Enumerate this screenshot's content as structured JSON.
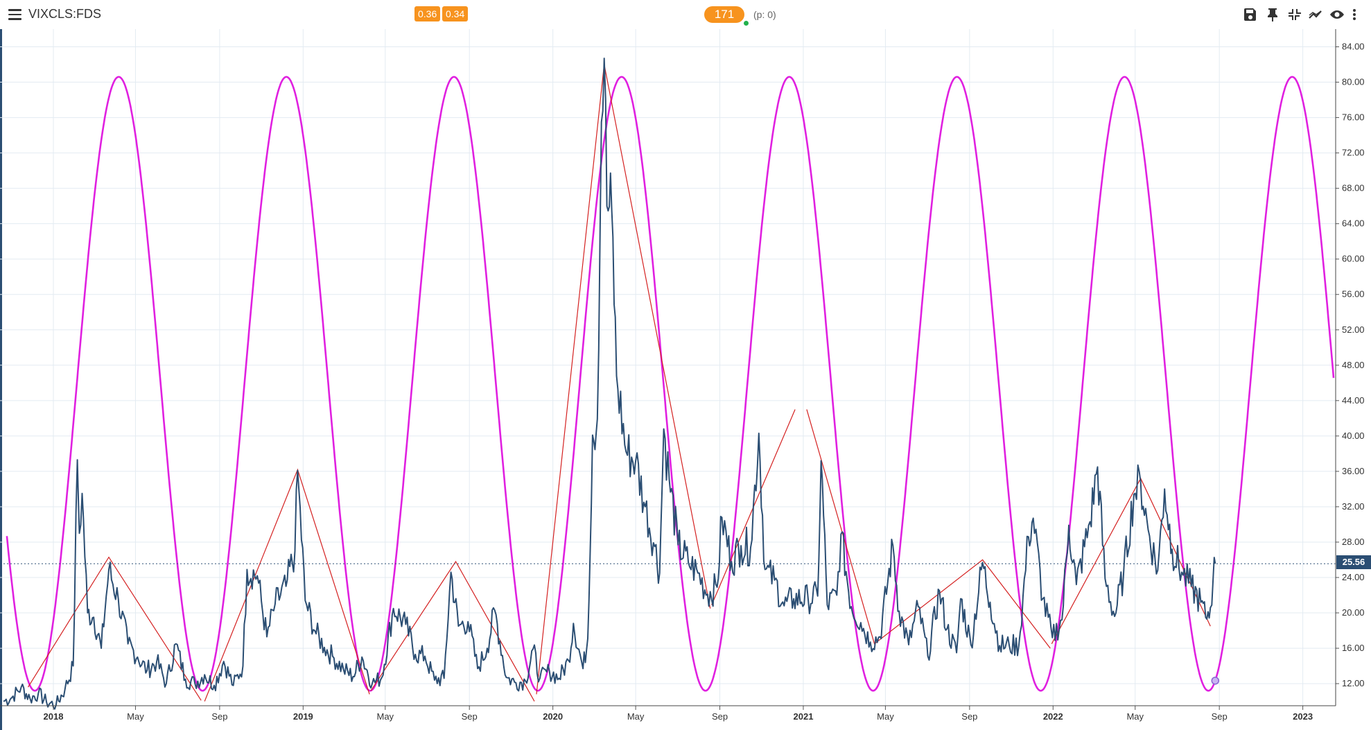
{
  "header": {
    "symbol": "VIXCLS:FDS",
    "badge_1": "0.36",
    "badge_2": "0.34",
    "count_pill": "171",
    "p_count": "(p: 0)",
    "tools": [
      "save-icon",
      "pin-icon",
      "compress-icon",
      "trend-icon",
      "eye-icon",
      "more-vert-icon"
    ]
  },
  "colors": {
    "price": "#2b4e73",
    "cycle": "#e020e0",
    "zigzag": "#d42020",
    "badge": "#f7931e",
    "grid": "#e3ebf2"
  },
  "chart_data": {
    "type": "line",
    "x_tick_labels": [
      "2018",
      "May",
      "Sep",
      "2019",
      "May",
      "Sep",
      "2020",
      "May",
      "Sep",
      "2021",
      "May",
      "Sep",
      "2022",
      "May",
      "Sep",
      "2023"
    ],
    "y_tick_labels": [
      "12.00",
      "16.00",
      "20.00",
      "24.00",
      "28.00",
      "32.00",
      "36.00",
      "40.00",
      "44.00",
      "48.00",
      "52.00",
      "56.00",
      "60.00",
      "64.00",
      "68.00",
      "72.00",
      "76.00",
      "80.00",
      "84.00"
    ],
    "ylim": [
      9.5,
      86
    ],
    "xlim": [
      "2017-10-15",
      "2023-02-18"
    ],
    "current_value": "25.56",
    "series": [
      {
        "kind": "price",
        "points": [
          [
            "2017-10-20",
            10.0
          ],
          [
            "2017-11-01",
            10.4
          ],
          [
            "2017-11-15",
            11.6
          ],
          [
            "2017-11-28",
            10.3
          ],
          [
            "2017-12-10",
            10.9
          ],
          [
            "2017-12-22",
            9.9
          ],
          [
            "2018-01-05",
            9.6
          ],
          [
            "2018-01-18",
            11.4
          ],
          [
            "2018-01-30",
            14.0
          ],
          [
            "2018-02-05",
            37.3
          ],
          [
            "2018-02-08",
            29.0
          ],
          [
            "2018-02-12",
            33.5
          ],
          [
            "2018-02-20",
            20.0
          ],
          [
            "2018-03-01",
            19.5
          ],
          [
            "2018-03-12",
            16.0
          ],
          [
            "2018-03-23",
            24.9
          ],
          [
            "2018-04-06",
            21.5
          ],
          [
            "2018-04-20",
            16.5
          ],
          [
            "2018-05-04",
            15.0
          ],
          [
            "2018-05-18",
            13.5
          ],
          [
            "2018-06-01",
            14.5
          ],
          [
            "2018-06-15",
            12.0
          ],
          [
            "2018-06-29",
            16.5
          ],
          [
            "2018-07-13",
            12.5
          ],
          [
            "2018-07-27",
            12.0
          ],
          [
            "2018-08-10",
            13.0
          ],
          [
            "2018-08-24",
            11.8
          ],
          [
            "2018-09-07",
            14.5
          ],
          [
            "2018-09-21",
            11.8
          ],
          [
            "2018-10-05",
            14.0
          ],
          [
            "2018-10-11",
            24.9
          ],
          [
            "2018-10-26",
            24.2
          ],
          [
            "2018-11-09",
            17.3
          ],
          [
            "2018-11-21",
            21.0
          ],
          [
            "2018-12-07",
            23.0
          ],
          [
            "2018-12-20",
            27.0
          ],
          [
            "2018-12-24",
            36.1
          ],
          [
            "2019-01-04",
            21.4
          ],
          [
            "2019-01-18",
            18.0
          ],
          [
            "2019-02-01",
            16.1
          ],
          [
            "2019-02-15",
            14.9
          ],
          [
            "2019-03-01",
            13.6
          ],
          [
            "2019-03-15",
            12.8
          ],
          [
            "2019-03-28",
            15.0
          ],
          [
            "2019-04-12",
            12.0
          ],
          [
            "2019-04-26",
            12.7
          ],
          [
            "2019-05-13",
            20.5
          ],
          [
            "2019-05-31",
            18.7
          ],
          [
            "2019-06-14",
            15.3
          ],
          [
            "2019-06-28",
            15.1
          ],
          [
            "2019-07-12",
            12.4
          ],
          [
            "2019-07-26",
            12.6
          ],
          [
            "2019-08-05",
            24.6
          ],
          [
            "2019-08-16",
            18.5
          ],
          [
            "2019-08-30",
            19.0
          ],
          [
            "2019-09-13",
            13.7
          ],
          [
            "2019-09-27",
            16.0
          ],
          [
            "2019-10-08",
            20.3
          ],
          [
            "2019-10-25",
            12.7
          ],
          [
            "2019-11-08",
            12.1
          ],
          [
            "2019-11-22",
            12.3
          ],
          [
            "2019-12-03",
            15.9
          ],
          [
            "2019-12-13",
            12.6
          ],
          [
            "2019-12-27",
            13.4
          ],
          [
            "2020-01-10",
            12.6
          ],
          [
            "2020-01-24",
            14.6
          ],
          [
            "2020-01-31",
            18.8
          ],
          [
            "2020-02-14",
            13.7
          ],
          [
            "2020-02-21",
            17.1
          ],
          [
            "2020-02-28",
            40.1
          ],
          [
            "2020-03-06",
            41.9
          ],
          [
            "2020-03-12",
            75.5
          ],
          [
            "2020-03-16",
            82.7
          ],
          [
            "2020-03-20",
            66.0
          ],
          [
            "2020-03-27",
            65.5
          ],
          [
            "2020-04-03",
            46.8
          ],
          [
            "2020-04-17",
            38.2
          ],
          [
            "2020-05-01",
            37.2
          ],
          [
            "2020-05-15",
            32.0
          ],
          [
            "2020-05-29",
            27.5
          ],
          [
            "2020-06-05",
            24.5
          ],
          [
            "2020-06-11",
            40.8
          ],
          [
            "2020-06-19",
            35.1
          ],
          [
            "2020-07-02",
            27.7
          ],
          [
            "2020-07-17",
            25.7
          ],
          [
            "2020-07-31",
            24.5
          ],
          [
            "2020-08-14",
            22.1
          ],
          [
            "2020-08-28",
            22.9
          ],
          [
            "2020-09-04",
            30.8
          ],
          [
            "2020-09-18",
            25.8
          ],
          [
            "2020-10-02",
            27.6
          ],
          [
            "2020-10-16",
            27.4
          ],
          [
            "2020-10-28",
            40.3
          ],
          [
            "2020-11-06",
            24.9
          ],
          [
            "2020-11-20",
            23.7
          ],
          [
            "2020-12-04",
            20.8
          ],
          [
            "2020-12-18",
            21.6
          ],
          [
            "2021-01-08",
            21.6
          ],
          [
            "2021-01-22",
            21.9
          ],
          [
            "2021-01-27",
            37.2
          ],
          [
            "2021-02-05",
            20.9
          ],
          [
            "2021-02-19",
            22.0
          ],
          [
            "2021-02-25",
            28.9
          ],
          [
            "2021-03-12",
            20.7
          ],
          [
            "2021-03-26",
            18.9
          ],
          [
            "2021-04-09",
            16.7
          ],
          [
            "2021-04-23",
            17.3
          ],
          [
            "2021-05-12",
            27.6
          ],
          [
            "2021-05-21",
            20.2
          ],
          [
            "2021-06-04",
            16.4
          ],
          [
            "2021-06-18",
            20.7
          ],
          [
            "2021-07-02",
            15.1
          ],
          [
            "2021-07-19",
            22.5
          ],
          [
            "2021-07-30",
            18.2
          ],
          [
            "2021-08-13",
            15.5
          ],
          [
            "2021-08-19",
            21.6
          ],
          [
            "2021-09-03",
            16.4
          ],
          [
            "2021-09-20",
            25.7
          ],
          [
            "2021-10-01",
            21.2
          ],
          [
            "2021-10-15",
            16.3
          ],
          [
            "2021-10-29",
            16.3
          ],
          [
            "2021-11-12",
            16.3
          ],
          [
            "2021-11-26",
            28.6
          ],
          [
            "2021-12-03",
            30.7
          ],
          [
            "2021-12-17",
            21.6
          ],
          [
            "2021-12-31",
            17.2
          ],
          [
            "2022-01-14",
            19.2
          ],
          [
            "2022-01-24",
            29.9
          ],
          [
            "2022-02-04",
            23.2
          ],
          [
            "2022-02-24",
            30.3
          ],
          [
            "2022-03-07",
            36.5
          ],
          [
            "2022-03-18",
            23.9
          ],
          [
            "2022-04-01",
            19.6
          ],
          [
            "2022-04-14",
            24.4
          ],
          [
            "2022-04-29",
            33.4
          ],
          [
            "2022-05-09",
            34.8
          ],
          [
            "2022-05-20",
            29.4
          ],
          [
            "2022-06-03",
            24.8
          ],
          [
            "2022-06-13",
            34.0
          ],
          [
            "2022-06-24",
            27.2
          ],
          [
            "2022-07-08",
            24.6
          ],
          [
            "2022-07-22",
            23.0
          ],
          [
            "2022-08-05",
            21.2
          ],
          [
            "2022-08-12",
            19.5
          ],
          [
            "2022-08-19",
            20.6
          ],
          [
            "2022-08-23",
            24.0
          ],
          [
            "2022-08-26",
            25.56
          ]
        ]
      },
      {
        "kind": "cycle",
        "min": 11.2,
        "max": 80.6,
        "first_trough": "2017-12-05",
        "period_days": 245,
        "end": "2023-02-15"
      },
      {
        "kind": "zigzag",
        "segments": [
          [
            [
              "2017-11-25",
              11.6
            ],
            [
              "2018-03-23",
              26.3
            ],
            [
              "2018-08-05",
              10.1
            ]
          ],
          [
            [
              "2018-08-10",
              10.0
            ],
            [
              "2018-12-24",
              36.2
            ],
            [
              "2019-04-08",
              10.8
            ]
          ],
          [
            [
              "2019-04-10",
              11.2
            ],
            [
              "2019-08-12",
              25.8
            ],
            [
              "2019-12-05",
              10.0
            ]
          ],
          [
            [
              "2019-12-08",
              10.8
            ],
            [
              "2020-03-16",
              82.0
            ],
            [
              "2020-08-18",
              20.5
            ]
          ],
          [
            [
              "2020-08-20",
              20.9
            ],
            [
              "2020-12-20",
              43.0
            ]
          ],
          [
            [
              "2021-01-06",
              43.0
            ],
            [
              "2021-04-15",
              16.5
            ],
            [
              "2021-09-20",
              26.0
            ],
            [
              "2021-12-28",
              16.0
            ]
          ],
          [
            [
              "2021-12-30",
              16.5
            ],
            [
              "2022-05-09",
              35.2
            ],
            [
              "2022-08-19",
              18.5
            ]
          ]
        ]
      }
    ]
  }
}
